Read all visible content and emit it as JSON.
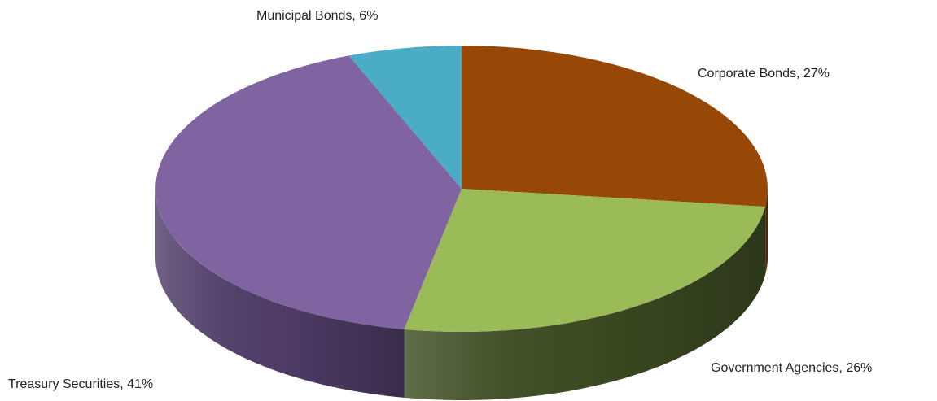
{
  "chart_data": {
    "type": "pie",
    "style": "3d",
    "title": "",
    "legend": "none",
    "start_angle_deg": 0,
    "slices": [
      {
        "name": "Corporate Bonds",
        "value": 27,
        "label": "Corporate Bonds, 27%",
        "color": "#974706",
        "side_color": "#5c2b04"
      },
      {
        "name": "Government Agencies",
        "value": 26,
        "label": "Government Agencies, 26%",
        "color": "#9bbb59",
        "side_color": "#3f4f24"
      },
      {
        "name": "Treasury Securities",
        "value": 41,
        "label": "Treasury Securities, 41%",
        "color": "#8064a2",
        "side_color": "#523f6c"
      },
      {
        "name": "Municipal Bonds",
        "value": 6,
        "label": "Municipal Bonds, 6%",
        "color": "#4bacc6",
        "side_color": "#2f7f95"
      }
    ]
  }
}
